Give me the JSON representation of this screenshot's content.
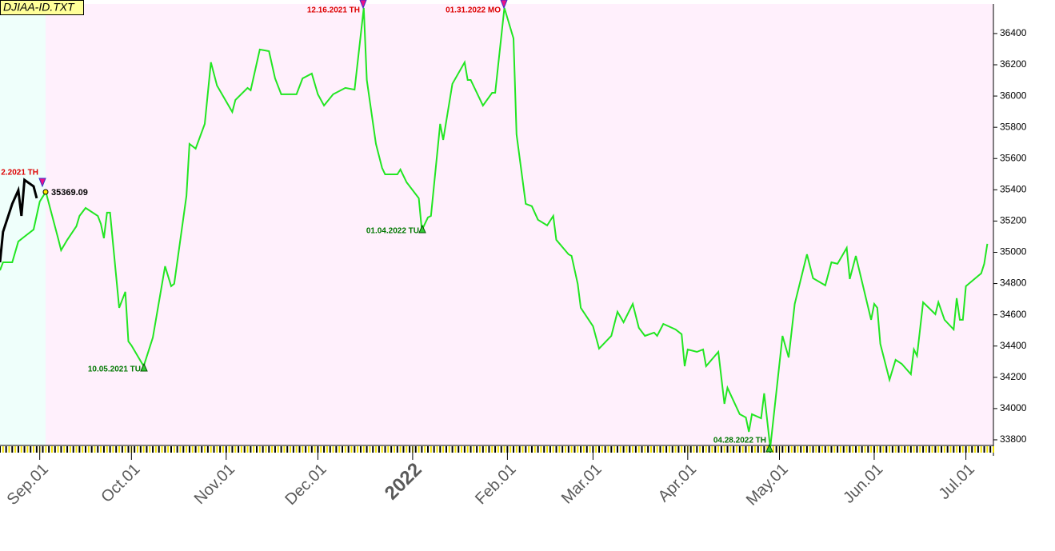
{
  "chart_data": {
    "type": "line",
    "title": "DJIAA-ID.TXT",
    "xlim": [
      "2021-08-19",
      "2022-07-10"
    ],
    "ylim": [
      33764,
      36589
    ],
    "yticks": [
      33800,
      34000,
      34200,
      34400,
      34600,
      34800,
      35000,
      35200,
      35400,
      35600,
      35800,
      36000,
      36200,
      36400
    ],
    "xticks": [
      {
        "value": "2021-09-01",
        "label": "Sep.01"
      },
      {
        "value": "2021-10-01",
        "label": "Oct.01"
      },
      {
        "value": "2021-11-01",
        "label": "Nov.01"
      },
      {
        "value": "2021-12-01",
        "label": "Dec.01"
      },
      {
        "value": "2022-01-01",
        "label": "2022",
        "color": "#800000"
      },
      {
        "value": "2022-02-01",
        "label": "Feb.01"
      },
      {
        "value": "2022-03-01",
        "label": "Mar.01"
      },
      {
        "value": "2022-04-01",
        "label": "Apr.01"
      },
      {
        "value": "2022-05-01",
        "label": "May.01"
      },
      {
        "value": "2022-06-01",
        "label": "Jun.01"
      },
      {
        "value": "2022-07-01",
        "label": "Jul.01"
      }
    ],
    "series": [
      {
        "color": "#000000",
        "x": [
          "2021-08-19",
          "2021-08-20",
          "2021-08-23",
          "2021-08-25",
          "2021-08-26",
          "2021-08-27",
          "2021-08-30",
          "2021-08-31"
        ],
        "values": [
          34936,
          35131,
          35310,
          35397,
          35233,
          35463,
          35422,
          35346
        ]
      },
      {
        "color": "#22e622",
        "x": [
          "2021-08-19",
          "2021-08-20",
          "2021-08-23",
          "2021-08-25",
          "2021-08-27",
          "2021-08-30",
          "2021-09-01",
          "2021-09-03",
          "2021-09-07",
          "2021-09-08",
          "2021-09-10",
          "2021-09-13",
          "2021-09-14",
          "2021-09-16",
          "2021-09-20",
          "2021-09-21",
          "2021-09-22",
          "2021-09-23",
          "2021-09-24",
          "2021-09-27",
          "2021-09-29",
          "2021-09-30",
          "2021-10-01",
          "2021-10-05",
          "2021-10-08",
          "2021-10-12",
          "2021-10-14",
          "2021-10-15",
          "2021-10-19",
          "2021-10-20",
          "2021-10-22",
          "2021-10-25",
          "2021-10-27",
          "2021-10-29",
          "2021-11-03",
          "2021-11-04",
          "2021-11-08",
          "2021-11-09",
          "2021-11-12",
          "2021-11-15",
          "2021-11-17",
          "2021-11-19",
          "2021-11-24",
          "2021-11-26",
          "2021-11-29",
          "2021-12-01",
          "2021-12-03",
          "2021-12-06",
          "2021-12-10",
          "2021-12-13",
          "2021-12-16",
          "2021-12-17",
          "2021-12-20",
          "2021-12-22",
          "2021-12-23",
          "2021-12-27",
          "2021-12-28",
          "2021-12-30",
          "2022-01-03",
          "2022-01-04",
          "2022-01-06",
          "2022-01-07",
          "2022-01-10",
          "2022-01-11",
          "2022-01-14",
          "2022-01-18",
          "2022-01-19",
          "2022-01-20",
          "2022-01-24",
          "2022-01-27",
          "2022-01-28",
          "2022-01-31",
          "2022-02-03",
          "2022-02-04",
          "2022-02-07",
          "2022-02-09",
          "2022-02-11",
          "2022-02-14",
          "2022-02-16",
          "2022-02-17",
          "2022-02-21",
          "2022-02-22",
          "2022-02-24",
          "2022-02-25",
          "2022-03-01",
          "2022-03-03",
          "2022-03-07",
          "2022-03-09",
          "2022-03-11",
          "2022-03-14",
          "2022-03-16",
          "2022-03-18",
          "2022-03-21",
          "2022-03-22",
          "2022-03-24",
          "2022-03-28",
          "2022-03-30",
          "2022-03-31",
          "2022-04-01",
          "2022-04-04",
          "2022-04-06",
          "2022-04-07",
          "2022-04-11",
          "2022-04-13",
          "2022-04-14",
          "2022-04-18",
          "2022-04-20",
          "2022-04-21",
          "2022-04-22",
          "2022-04-25",
          "2022-04-26",
          "2022-04-28",
          "2022-05-02",
          "2022-05-04",
          "2022-05-06",
          "2022-05-10",
          "2022-05-12",
          "2022-05-16",
          "2022-05-18",
          "2022-05-20",
          "2022-05-23",
          "2022-05-24",
          "2022-05-26",
          "2022-05-31",
          "2022-06-01",
          "2022-06-02",
          "2022-06-03",
          "2022-06-06",
          "2022-06-08",
          "2022-06-10",
          "2022-06-13",
          "2022-06-14",
          "2022-06-15",
          "2022-06-17",
          "2022-06-21",
          "2022-06-22",
          "2022-06-24",
          "2022-06-27",
          "2022-06-28",
          "2022-06-29",
          "2022-06-30",
          "2022-07-01",
          "2022-07-05",
          "2022-07-06",
          "2022-07-07",
          "2022-07-08"
        ],
        "values": [
          34885,
          34936,
          34936,
          35069,
          35100,
          35146,
          35325,
          35387,
          35090,
          35013,
          35080,
          35167,
          35233,
          35284,
          35233,
          35182,
          35090,
          35254,
          35254,
          34645,
          34747,
          34430,
          34404,
          34271,
          34455,
          34911,
          34783,
          34799,
          35361,
          35694,
          35663,
          35822,
          36216,
          36067,
          35898,
          35975,
          36052,
          36037,
          36298,
          36287,
          36113,
          36011,
          36011,
          36113,
          36144,
          36011,
          35939,
          36011,
          36052,
          36041,
          36564,
          36103,
          35694,
          35540,
          35499,
          35499,
          35530,
          35448,
          35346,
          35141,
          35223,
          35233,
          35822,
          35719,
          36078,
          36216,
          36103,
          36103,
          35939,
          36021,
          36021,
          36564,
          36369,
          35755,
          35310,
          35295,
          35208,
          35172,
          35233,
          35080,
          34987,
          34977,
          34798,
          34645,
          34527,
          34384,
          34465,
          34619,
          34552,
          34670,
          34517,
          34465,
          34486,
          34465,
          34542,
          34506,
          34476,
          34271,
          34378,
          34363,
          34378,
          34271,
          34363,
          34030,
          34133,
          33964,
          33943,
          33851,
          33964,
          33938,
          34097,
          33749,
          34465,
          34327,
          34670,
          34987,
          34834,
          34788,
          34936,
          34926,
          35028,
          34829,
          34977,
          34568,
          34670,
          34645,
          34414,
          34184,
          34312,
          34286,
          34220,
          34378,
          34337,
          34680,
          34604,
          34680,
          34568,
          34506,
          34706,
          34568,
          34568,
          34783,
          34849,
          34865,
          34926,
          35054
        ]
      }
    ],
    "annotations": [
      {
        "text": "2.2021 TH",
        "color": "#dd0000"
      },
      {
        "text": "12.16.2021 TH",
        "color": "#dd0000"
      },
      {
        "text": "01.31.2022 MO",
        "color": "#dd0000"
      },
      {
        "text": "10.05.2021 TU",
        "color": "#007700"
      },
      {
        "text": "01.04.2022 TU",
        "color": "#007700"
      },
      {
        "text": "04.28.2022 TH",
        "color": "#007700"
      },
      {
        "text": "35369.09",
        "color": "#000000"
      }
    ]
  }
}
